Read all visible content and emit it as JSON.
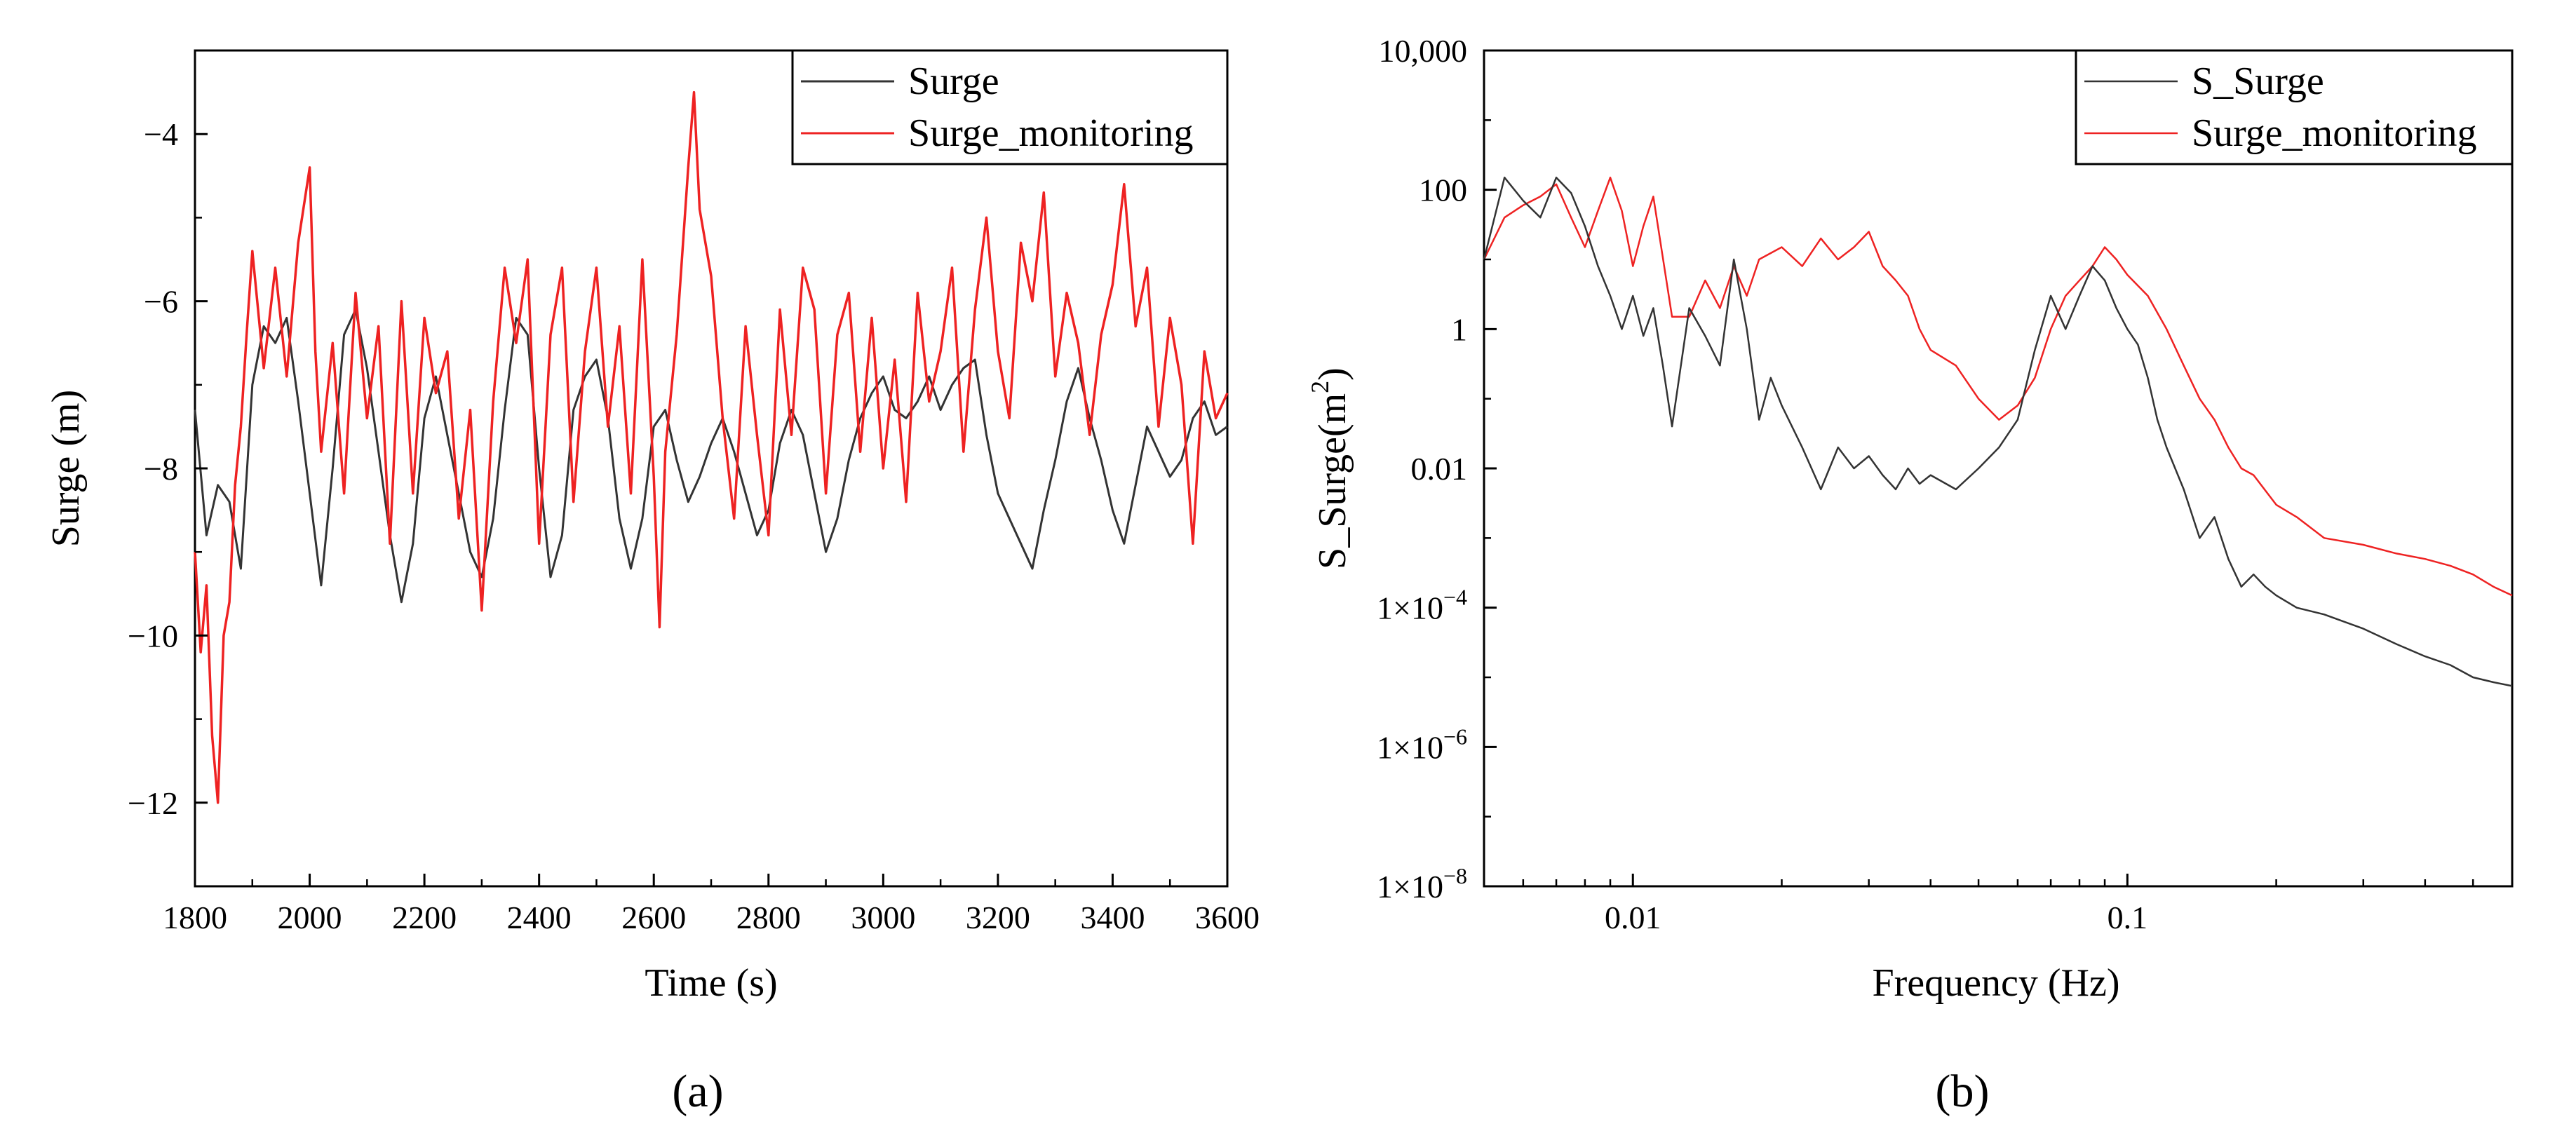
{
  "chart_data": [
    {
      "panel_label": "(a)",
      "type": "line",
      "title": "",
      "xlabel": "Time (s)",
      "ylabel": "Surge (m)",
      "xlim": [
        1800,
        3600
      ],
      "ylim": [
        -13,
        -3
      ],
      "x_ticks": [
        1800,
        2000,
        2200,
        2400,
        2600,
        2800,
        3000,
        3200,
        3400,
        3600
      ],
      "x_tick_labels": [
        "1800",
        "2000",
        "2200",
        "2400",
        "2600",
        "2800",
        "3000",
        "3200",
        "3400",
        "3600"
      ],
      "y_ticks": [
        -12,
        -10,
        -8,
        -6,
        -4
      ],
      "y_tick_labels": [
        "−12",
        "−10",
        "−8",
        "−6",
        "−4"
      ],
      "grid": false,
      "legend_position": "top-right",
      "series": [
        {
          "name": "Surge",
          "color": "#333333",
          "x": [
            1800,
            1820,
            1840,
            1860,
            1880,
            1900,
            1920,
            1940,
            1960,
            1980,
            2000,
            2020,
            2040,
            2060,
            2080,
            2100,
            2120,
            2140,
            2160,
            2180,
            2200,
            2220,
            2240,
            2260,
            2280,
            2300,
            2320,
            2340,
            2360,
            2380,
            2400,
            2420,
            2440,
            2460,
            2480,
            2500,
            2520,
            2540,
            2560,
            2580,
            2600,
            2620,
            2640,
            2660,
            2680,
            2700,
            2720,
            2740,
            2760,
            2780,
            2800,
            2820,
            2840,
            2860,
            2880,
            2900,
            2920,
            2940,
            2960,
            2980,
            3000,
            3020,
            3040,
            3060,
            3080,
            3100,
            3120,
            3140,
            3160,
            3180,
            3200,
            3220,
            3240,
            3260,
            3280,
            3300,
            3320,
            3340,
            3360,
            3380,
            3400,
            3420,
            3440,
            3460,
            3480,
            3500,
            3520,
            3540,
            3560,
            3580,
            3600
          ],
          "values": [
            -7.3,
            -8.8,
            -8.2,
            -8.4,
            -9.2,
            -7.0,
            -6.3,
            -6.5,
            -6.2,
            -7.2,
            -8.3,
            -9.4,
            -8.0,
            -6.4,
            -6.1,
            -6.8,
            -7.8,
            -8.8,
            -9.6,
            -8.9,
            -7.4,
            -6.9,
            -7.6,
            -8.3,
            -9.0,
            -9.3,
            -8.6,
            -7.3,
            -6.2,
            -6.4,
            -8.0,
            -9.3,
            -8.8,
            -7.3,
            -6.9,
            -6.7,
            -7.4,
            -8.6,
            -9.2,
            -8.6,
            -7.5,
            -7.3,
            -7.9,
            -8.4,
            -8.1,
            -7.7,
            -7.4,
            -7.8,
            -8.3,
            -8.8,
            -8.5,
            -7.7,
            -7.3,
            -7.6,
            -8.3,
            -9.0,
            -8.6,
            -7.9,
            -7.4,
            -7.1,
            -6.9,
            -7.3,
            -7.4,
            -7.2,
            -6.9,
            -7.3,
            -7.0,
            -6.8,
            -6.7,
            -7.6,
            -8.3,
            -8.6,
            -8.9,
            -9.2,
            -8.5,
            -7.9,
            -7.2,
            -6.8,
            -7.4,
            -7.9,
            -8.5,
            -8.9,
            -8.2,
            -7.5,
            -7.8,
            -8.1,
            -7.9,
            -7.4,
            -7.2,
            -7.6,
            -7.5
          ]
        },
        {
          "name": "Surge_monitoring",
          "color": "#ee2222",
          "x": [
            1800,
            1810,
            1820,
            1830,
            1840,
            1850,
            1860,
            1870,
            1880,
            1890,
            1900,
            1920,
            1940,
            1960,
            1980,
            2000,
            2010,
            2020,
            2040,
            2060,
            2080,
            2100,
            2120,
            2140,
            2160,
            2180,
            2200,
            2220,
            2240,
            2260,
            2280,
            2300,
            2320,
            2340,
            2360,
            2380,
            2400,
            2420,
            2440,
            2460,
            2480,
            2500,
            2520,
            2540,
            2560,
            2580,
            2600,
            2610,
            2620,
            2640,
            2660,
            2670,
            2680,
            2700,
            2720,
            2740,
            2760,
            2780,
            2800,
            2820,
            2840,
            2860,
            2880,
            2900,
            2920,
            2940,
            2960,
            2980,
            3000,
            3020,
            3040,
            3060,
            3080,
            3100,
            3120,
            3140,
            3160,
            3180,
            3200,
            3220,
            3240,
            3260,
            3280,
            3300,
            3320,
            3340,
            3360,
            3380,
            3400,
            3420,
            3440,
            3460,
            3480,
            3500,
            3520,
            3540,
            3560,
            3580,
            3600
          ],
          "values": [
            -9.0,
            -10.2,
            -9.4,
            -11.2,
            -12.0,
            -10.0,
            -9.6,
            -8.2,
            -7.5,
            -6.4,
            -5.4,
            -6.8,
            -5.6,
            -6.9,
            -5.3,
            -4.4,
            -6.6,
            -7.8,
            -6.5,
            -8.3,
            -5.9,
            -7.4,
            -6.3,
            -8.9,
            -6.0,
            -8.3,
            -6.2,
            -7.1,
            -6.6,
            -8.6,
            -7.3,
            -9.7,
            -7.2,
            -5.6,
            -6.5,
            -5.5,
            -8.9,
            -6.4,
            -5.6,
            -8.4,
            -6.6,
            -5.6,
            -7.5,
            -6.3,
            -8.3,
            -5.5,
            -8.1,
            -9.9,
            -7.8,
            -6.4,
            -4.4,
            -3.5,
            -4.9,
            -5.7,
            -7.4,
            -8.6,
            -6.3,
            -7.6,
            -8.8,
            -6.1,
            -7.6,
            -5.6,
            -6.1,
            -8.3,
            -6.4,
            -5.9,
            -7.8,
            -6.2,
            -8.0,
            -6.7,
            -8.4,
            -5.9,
            -7.2,
            -6.6,
            -5.6,
            -7.8,
            -6.1,
            -5.0,
            -6.6,
            -7.4,
            -5.3,
            -6.0,
            -4.7,
            -6.9,
            -5.9,
            -6.5,
            -7.6,
            -6.4,
            -5.8,
            -4.6,
            -6.3,
            -5.6,
            -7.5,
            -6.2,
            -7.0,
            -8.9,
            -6.6,
            -7.4,
            -7.1
          ]
        }
      ]
    },
    {
      "panel_label": "(b)",
      "type": "line",
      "title": "",
      "xlabel": "Frequency (Hz)",
      "ylabel": "S_Surge(m²)",
      "ylabel_base": "S_Surge(m",
      "ylabel_sup": "2",
      "ylabel_close": ")",
      "x_scale": "log",
      "y_scale": "log",
      "xlim": [
        0.005,
        0.6
      ],
      "ylim": [
        1e-08,
        10000
      ],
      "x_ticks": [
        0.01,
        0.1
      ],
      "x_tick_labels": [
        "0.01",
        "0.1"
      ],
      "y_ticks": [
        1e-08,
        1e-06,
        0.0001,
        0.01,
        1,
        100,
        10000
      ],
      "y_tick_labels": [
        "1×10",
        "1×10",
        "1×10",
        "0.01",
        "1",
        "100",
        "10,000"
      ],
      "y_tick_label_sup": [
        "−8",
        "−6",
        "−4",
        "",
        "",
        "",
        ""
      ],
      "grid": false,
      "legend_position": "top-right",
      "series": [
        {
          "name": "S_Surge",
          "color": "#333333",
          "x": [
            0.005,
            0.0055,
            0.006,
            0.0065,
            0.007,
            0.0075,
            0.008,
            0.0085,
            0.009,
            0.0095,
            0.01,
            0.0105,
            0.011,
            0.0115,
            0.012,
            0.013,
            0.014,
            0.015,
            0.016,
            0.017,
            0.018,
            0.019,
            0.02,
            0.022,
            0.024,
            0.026,
            0.028,
            0.03,
            0.032,
            0.034,
            0.036,
            0.038,
            0.04,
            0.045,
            0.05,
            0.055,
            0.06,
            0.065,
            0.07,
            0.075,
            0.08,
            0.085,
            0.09,
            0.095,
            0.1,
            0.105,
            0.11,
            0.115,
            0.12,
            0.13,
            0.14,
            0.15,
            0.16,
            0.17,
            0.18,
            0.19,
            0.2,
            0.22,
            0.25,
            0.3,
            0.35,
            0.4,
            0.45,
            0.5,
            0.55,
            0.6
          ],
          "values": [
            10,
            150,
            70,
            40,
            150,
            90,
            30,
            8,
            3,
            1,
            3,
            0.8,
            2,
            0.3,
            0.04,
            2,
            0.8,
            0.3,
            10,
            1,
            0.05,
            0.2,
            0.08,
            0.02,
            0.005,
            0.02,
            0.01,
            0.015,
            0.008,
            0.005,
            0.01,
            0.006,
            0.008,
            0.005,
            0.01,
            0.02,
            0.05,
            0.5,
            3,
            1,
            3,
            8,
            5,
            2,
            1,
            0.6,
            0.2,
            0.05,
            0.02,
            0.005,
            0.001,
            0.002,
            0.0005,
            0.0002,
            0.0003,
            0.0002,
            0.00015,
            0.0001,
            8e-05,
            5e-05,
            3e-05,
            2e-05,
            1.5e-05,
            1e-05,
            8.5e-06,
            7.5e-06
          ]
        },
        {
          "name": "Surge_monitoring",
          "color": "#ee2222",
          "x": [
            0.005,
            0.0055,
            0.006,
            0.0065,
            0.007,
            0.0075,
            0.008,
            0.0085,
            0.009,
            0.0095,
            0.01,
            0.0105,
            0.011,
            0.012,
            0.013,
            0.014,
            0.015,
            0.016,
            0.017,
            0.018,
            0.02,
            0.022,
            0.024,
            0.026,
            0.028,
            0.03,
            0.032,
            0.034,
            0.036,
            0.038,
            0.04,
            0.045,
            0.05,
            0.055,
            0.06,
            0.065,
            0.07,
            0.075,
            0.08,
            0.085,
            0.09,
            0.095,
            0.1,
            0.11,
            0.12,
            0.13,
            0.14,
            0.15,
            0.16,
            0.17,
            0.18,
            0.2,
            0.22,
            0.25,
            0.3,
            0.35,
            0.4,
            0.45,
            0.5,
            0.55,
            0.6
          ],
          "values": [
            10,
            40,
            60,
            80,
            120,
            40,
            15,
            50,
            150,
            50,
            8,
            30,
            80,
            1.5,
            1.5,
            5,
            2,
            8,
            3,
            10,
            15,
            8,
            20,
            10,
            15,
            25,
            8,
            5,
            3,
            1,
            0.5,
            0.3,
            0.1,
            0.05,
            0.08,
            0.2,
            1,
            3,
            5,
            8,
            15,
            10,
            6,
            3,
            1,
            0.3,
            0.1,
            0.05,
            0.02,
            0.01,
            0.008,
            0.003,
            0.002,
            0.001,
            0.0008,
            0.0006,
            0.0005,
            0.0004,
            0.0003,
            0.0002,
            0.00015
          ]
        }
      ]
    }
  ]
}
